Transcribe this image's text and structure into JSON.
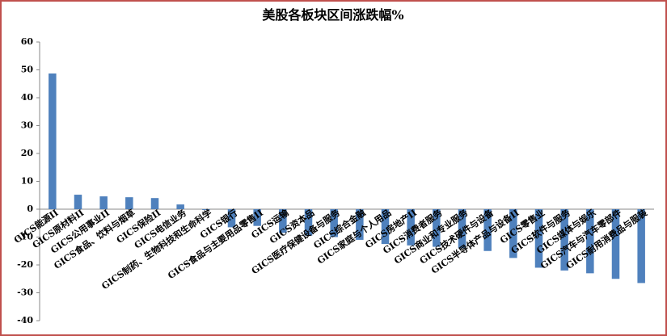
{
  "chart_data": {
    "type": "bar",
    "title": "美股各板块区间涨跌幅%",
    "categories": [
      "GICS能源II",
      "GICS原材料II",
      "GICS公用事业II",
      "GICS食品、饮料与烟草",
      "GICS保险II",
      "GICS电信业务",
      "GICS制药、生物科技和生命科学",
      "GICS银行",
      "GICS食品与主要用品零售II",
      "GICS运输",
      "GICS资本品",
      "GICS医疗保健设备与服务",
      "GICS综合金融",
      "GICS家庭与个人用品",
      "GICS房地产II",
      "GICS消费者服务",
      "GICS商业和专业服务",
      "GICS技术硬件与设备",
      "GICS半导体产品与设备II",
      "GICS零售业",
      "GICS软件与服务",
      "GICS媒体与娱乐",
      "GICS汽车与汽车零部件",
      "GICS耐用消费品与服装"
    ],
    "values": [
      48.7,
      5.2,
      4.6,
      4.3,
      4.0,
      1.7,
      -0.3,
      -6.5,
      -6.0,
      -8.5,
      -9.5,
      -10.0,
      -11.0,
      -12.5,
      -13.0,
      -13.5,
      -14.0,
      -15.0,
      -17.5,
      -21.0,
      -22.0,
      -23.0,
      -25.0,
      -26.5
    ],
    "color": "#4f81bd",
    "ylim": [
      -40,
      60
    ],
    "yticks": [
      -40,
      -30,
      -20,
      -10,
      0,
      10,
      20,
      30,
      40,
      50,
      60
    ]
  }
}
